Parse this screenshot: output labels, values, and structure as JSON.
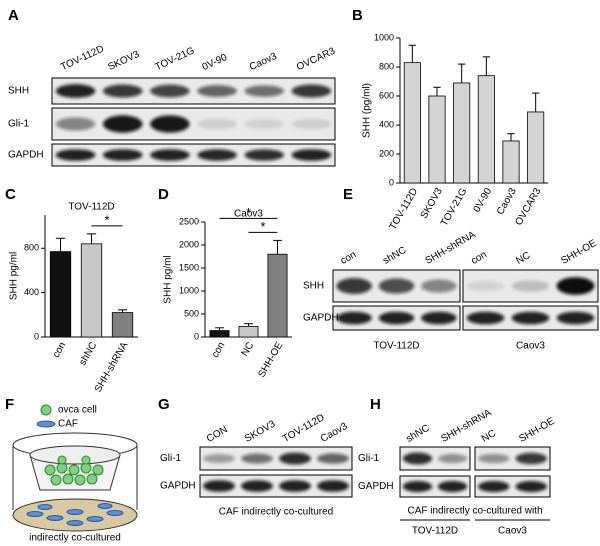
{
  "figure": {
    "letters": [
      "A",
      "B",
      "C",
      "D",
      "E",
      "F",
      "G",
      "H"
    ],
    "A": {
      "lanes": [
        "TOV-112D",
        "SKOV3",
        "TOV-21G",
        "0V-90",
        "Caov3",
        "OVCAR3"
      ],
      "rows": [
        "SHH",
        "Gli-1",
        "GAPDH"
      ]
    },
    "E": {
      "rows": [
        "SHH",
        "GAPDH"
      ],
      "groups": [
        {
          "lanes": [
            "con",
            "shNC",
            "SHH-shRNA"
          ],
          "label": "TOV-112D"
        },
        {
          "lanes": [
            "con",
            "NC",
            "SHH-OE"
          ],
          "label": "Caov3"
        }
      ]
    },
    "F": {
      "legend": [
        "ovca cell",
        "CAF"
      ],
      "caption": "indirectly co-cultured"
    },
    "G": {
      "lanes": [
        "CON",
        "SKOV3",
        "TOV-112D",
        "Caov3"
      ],
      "rows": [
        "Gli-1",
        "GAPDH"
      ],
      "caption": "CAF indirectly co-cultured"
    },
    "H": {
      "rows": [
        "Gli-1",
        "GAPDH"
      ],
      "groups": [
        {
          "lanes": [
            "shNC",
            "SHH-shRNA"
          ],
          "label": "TOV-112D"
        },
        {
          "lanes": [
            "NC",
            "SHH-OE"
          ],
          "label": "Caov3"
        }
      ],
      "caption": "CAF indirectly co-cultured with"
    }
  },
  "chart_data": [
    {
      "type": "bar",
      "ylabel": "SHH  (pg/ml)",
      "categories": [
        "TOV-112D",
        "SKOV3",
        "TOV-21G",
        "0V-90",
        "Caov3",
        "OVCAR3"
      ],
      "values": [
        830,
        600,
        690,
        740,
        290,
        490
      ],
      "errors": [
        120,
        60,
        130,
        130,
        50,
        130
      ],
      "color": "#d4d4d4",
      "ylim": [
        0,
        1000
      ],
      "yticks": [
        0,
        200,
        400,
        600,
        800,
        1000
      ]
    },
    {
      "type": "bar",
      "title": "TOV-112D",
      "ylabel": "SHH  pg/ml",
      "categories": [
        "con",
        "shNC",
        "SHH-shRNA"
      ],
      "values": [
        770,
        840,
        220
      ],
      "errors": [
        120,
        90,
        25
      ],
      "colors": [
        "#111111",
        "#c8c8c8",
        "#808080"
      ],
      "ylim": [
        0,
        1100
      ],
      "yticks": [
        0,
        400,
        800
      ],
      "annotations": [
        "*"
      ]
    },
    {
      "type": "bar",
      "title": "Caov3",
      "ylabel": "SHH  pg/ml",
      "categories": [
        "con",
        "NC",
        "SHH-OE"
      ],
      "values": [
        140,
        230,
        1800
      ],
      "errors": [
        60,
        60,
        300
      ],
      "colors": [
        "#111111",
        "#c8c8c8",
        "#808080"
      ],
      "ylim": [
        0,
        2500
      ],
      "yticks": [
        0,
        500,
        1000,
        1500,
        2000,
        2500
      ],
      "annotations": [
        "*",
        "*"
      ]
    }
  ]
}
